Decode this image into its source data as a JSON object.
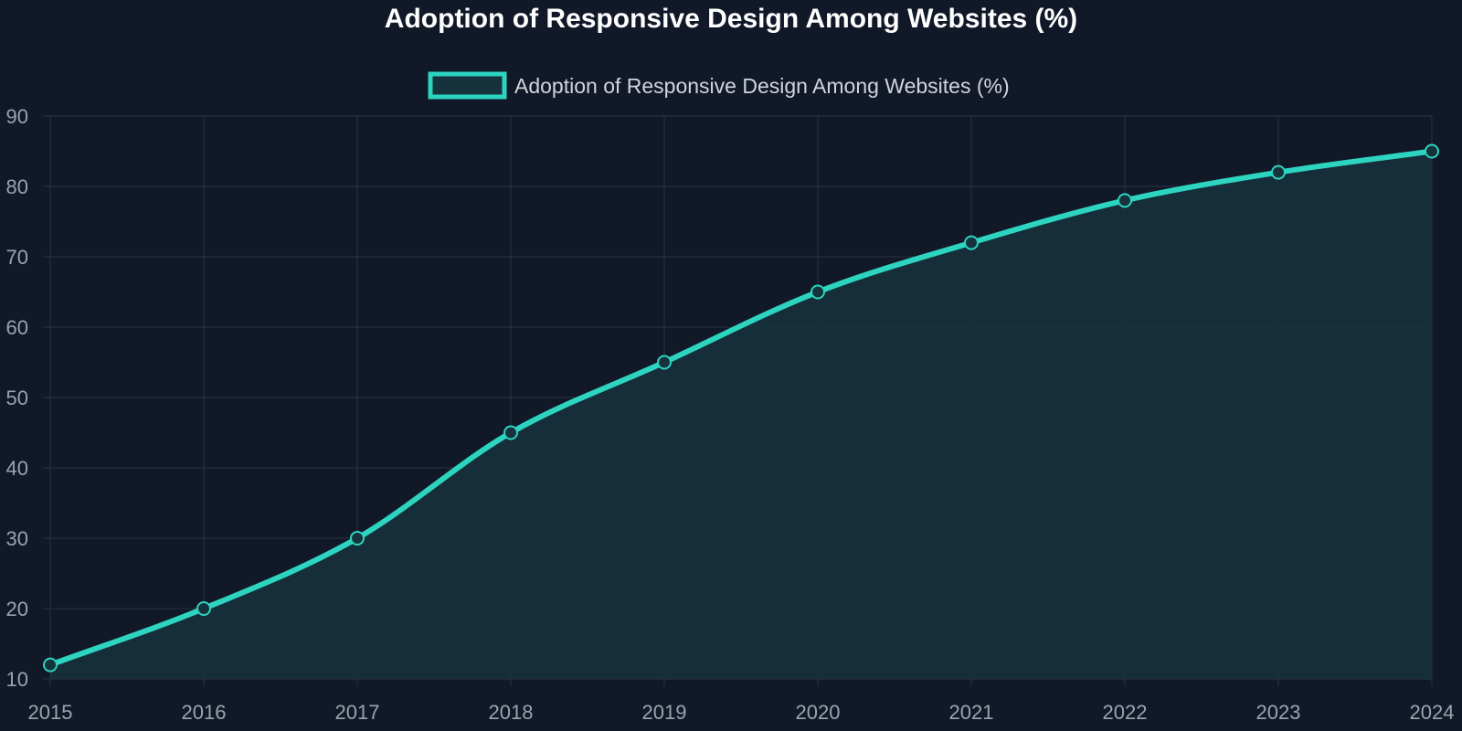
{
  "chart_data": {
    "type": "area",
    "title": "Adoption of Responsive Design Among Websites (%)",
    "xlabel": "",
    "ylabel": "",
    "x": [
      "2015",
      "2016",
      "2017",
      "2018",
      "2019",
      "2020",
      "2021",
      "2022",
      "2023",
      "2024"
    ],
    "series": [
      {
        "name": "Adoption of Responsive Design Among Websites (%)",
        "values": [
          12,
          20,
          30,
          45,
          55,
          65,
          72,
          78,
          82,
          85
        ],
        "color": "#2dd4bf",
        "fill": "#16333d"
      }
    ],
    "ylim": [
      10,
      90
    ],
    "yticks": [
      10,
      20,
      30,
      40,
      50,
      60,
      70,
      80,
      90
    ],
    "grid": true,
    "legend": "top-center",
    "colors": {
      "background": "#111827",
      "grid": "#2a3342",
      "tick_text": "#9ca3af",
      "legend_text": "#d1d5db",
      "title_text": "#ffffff"
    }
  }
}
